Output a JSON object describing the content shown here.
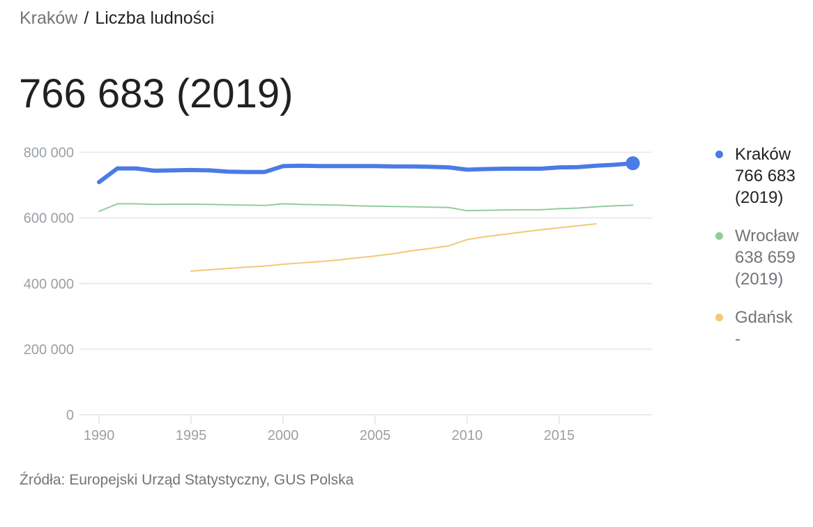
{
  "breadcrumb": {
    "parent": "Kraków",
    "separator": "/",
    "current": "Liczba ludności"
  },
  "headline": "766 683 (2019)",
  "legend": [
    {
      "name": "Kraków",
      "value": "766 683",
      "year": "(2019)",
      "color": "#4a7be6",
      "active": true
    },
    {
      "name": "Wrocław",
      "value": "638 659",
      "year": "(2019)",
      "color": "#93cc9f",
      "active": false
    },
    {
      "name": "Gdańsk",
      "value": "-",
      "year": "",
      "color": "#f2c978",
      "active": false
    }
  ],
  "source": "Źródła: Europejski Urząd Statystyczny, GUS Polska",
  "chart_data": {
    "type": "line",
    "title": "Liczba ludności",
    "xlabel": "",
    "ylabel": "",
    "x_ticks": [
      1990,
      1995,
      2000,
      2005,
      2010,
      2015
    ],
    "y_ticks": [
      0,
      200000,
      400000,
      600000,
      800000
    ],
    "y_tick_labels": [
      "0",
      "200 000",
      "400 000",
      "600 000",
      "800 000"
    ],
    "x_tick_labels": [
      "1990",
      "1995",
      "2000",
      "2005",
      "2010",
      "2015"
    ],
    "xlim": [
      1990,
      2019
    ],
    "ylim": [
      0,
      800000
    ],
    "grid": true,
    "legend_position": "right",
    "series": [
      {
        "name": "Kraków",
        "color": "#4a7be6",
        "x": [
          1990,
          1991,
          1992,
          1993,
          1994,
          1995,
          1996,
          1997,
          1998,
          1999,
          2000,
          2001,
          2002,
          2003,
          2004,
          2005,
          2006,
          2007,
          2008,
          2009,
          2010,
          2011,
          2012,
          2013,
          2014,
          2015,
          2016,
          2017,
          2018,
          2019
        ],
        "values": [
          709000,
          751000,
          751000,
          744000,
          745000,
          746000,
          745000,
          741000,
          740000,
          740000,
          758000,
          759000,
          758000,
          758000,
          758000,
          758000,
          757000,
          757000,
          756000,
          754000,
          747000,
          749000,
          750000,
          750000,
          750000,
          754000,
          755000,
          759000,
          762000,
          766683
        ]
      },
      {
        "name": "Wrocław",
        "color": "#93cc9f",
        "x": [
          1990,
          1991,
          1992,
          1993,
          1994,
          1995,
          1996,
          1997,
          1998,
          1999,
          2000,
          2001,
          2002,
          2003,
          2004,
          2005,
          2006,
          2007,
          2008,
          2009,
          2010,
          2011,
          2012,
          2013,
          2014,
          2015,
          2016,
          2017,
          2018,
          2019
        ],
        "values": [
          620000,
          643000,
          643000,
          641000,
          642000,
          642000,
          641000,
          640000,
          639000,
          638000,
          643000,
          641000,
          640000,
          639000,
          637000,
          636000,
          635000,
          634000,
          633000,
          632000,
          622000,
          623000,
          624000,
          625000,
          625000,
          628000,
          630000,
          634000,
          637000,
          638659
        ]
      },
      {
        "name": "Gdańsk",
        "color": "#f2c978",
        "x": [
          1995,
          1996,
          1997,
          1998,
          1999,
          2000,
          2001,
          2002,
          2003,
          2004,
          2005,
          2006,
          2007,
          2008,
          2009,
          2010,
          2011,
          2012,
          2013,
          2014,
          2015,
          2016,
          2017
        ],
        "values": [
          438000,
          442000,
          446000,
          450000,
          453000,
          459000,
          463000,
          467000,
          472000,
          478000,
          484000,
          491000,
          500000,
          507000,
          515000,
          534000,
          543000,
          550000,
          557000,
          564000,
          570000,
          576000,
          582000
        ]
      }
    ]
  }
}
